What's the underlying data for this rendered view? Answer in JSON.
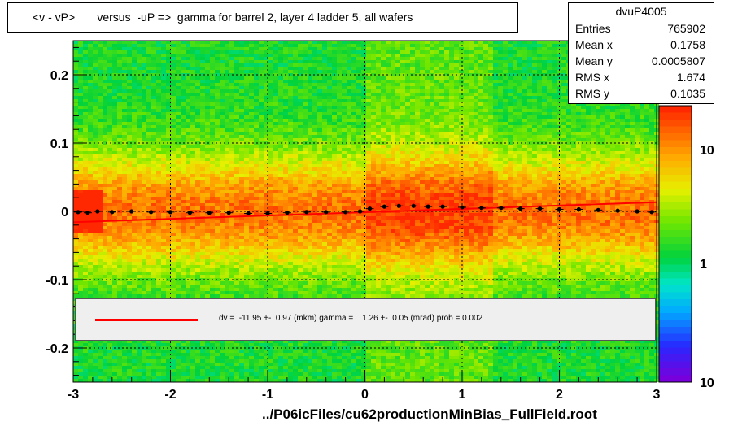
{
  "title": "<v - vP>       versus  -uP =>  gamma for barrel 2, layer 4 ladder 5, all wafers",
  "stats": {
    "name": "dvuP4005",
    "rows": [
      {
        "label": "Entries",
        "value": "765902"
      },
      {
        "label": "Mean x",
        "value": "0.1758"
      },
      {
        "label": "Mean y",
        "value": "0.0005807"
      },
      {
        "label": "RMS x",
        "value": "1.674"
      },
      {
        "label": "RMS y",
        "value": "0.1035"
      }
    ]
  },
  "fit": {
    "text": "dv =  -11.95 +-  0.97 (mkm) gamma =    1.26 +-  0.05 (mrad) prob = 0.002",
    "line_color": "#ff0000"
  },
  "footer": "../P06icFiles/cu62productionMinBias_FullField.root",
  "chart_data": {
    "type": "heatmap",
    "xlim": [
      -3,
      3
    ],
    "ylim": [
      -0.25,
      0.25
    ],
    "x_ticks": [
      -3,
      -2,
      -1,
      0,
      1,
      2,
      3
    ],
    "y_ticks": [
      -0.2,
      -0.1,
      0,
      0.1,
      0.2
    ],
    "y_tick_labels": [
      "-0.2",
      "-0.1",
      "0",
      "0.1",
      "0.2"
    ],
    "grid": true,
    "colorbar": {
      "scale": "log",
      "tick_labels": [
        "1",
        "10"
      ],
      "bottom_label": "10"
    },
    "profile_points": [
      {
        "x": -2.95,
        "y": -0.001
      },
      {
        "x": -2.85,
        "y": -0.002
      },
      {
        "x": -2.75,
        "y": 0.0
      },
      {
        "x": -2.6,
        "y": -0.001
      },
      {
        "x": -2.4,
        "y": 0.0
      },
      {
        "x": -2.2,
        "y": -0.001
      },
      {
        "x": -2.0,
        "y": -0.001
      },
      {
        "x": -1.8,
        "y": -0.002
      },
      {
        "x": -1.6,
        "y": -0.002
      },
      {
        "x": -1.4,
        "y": -0.002
      },
      {
        "x": -1.2,
        "y": -0.003
      },
      {
        "x": -1.0,
        "y": -0.003
      },
      {
        "x": -0.8,
        "y": -0.002
      },
      {
        "x": -0.6,
        "y": -0.001
      },
      {
        "x": -0.4,
        "y": -0.001
      },
      {
        "x": -0.2,
        "y": -0.001
      },
      {
        "x": -0.05,
        "y": 0.0
      },
      {
        "x": 0.05,
        "y": 0.004
      },
      {
        "x": 0.2,
        "y": 0.007
      },
      {
        "x": 0.35,
        "y": 0.008
      },
      {
        "x": 0.5,
        "y": 0.008
      },
      {
        "x": 0.65,
        "y": 0.007
      },
      {
        "x": 0.8,
        "y": 0.007
      },
      {
        "x": 1.0,
        "y": 0.006
      },
      {
        "x": 1.2,
        "y": 0.005
      },
      {
        "x": 1.4,
        "y": 0.005
      },
      {
        "x": 1.6,
        "y": 0.004
      },
      {
        "x": 1.8,
        "y": 0.004
      },
      {
        "x": 2.0,
        "y": 0.003
      },
      {
        "x": 2.2,
        "y": 0.003
      },
      {
        "x": 2.4,
        "y": 0.002
      },
      {
        "x": 2.6,
        "y": 0.001
      },
      {
        "x": 2.8,
        "y": 0.0
      },
      {
        "x": 2.95,
        "y": -0.001
      }
    ],
    "fit_line": {
      "x": [
        -3,
        3
      ],
      "y": [
        -0.0158,
        0.0134
      ]
    }
  }
}
